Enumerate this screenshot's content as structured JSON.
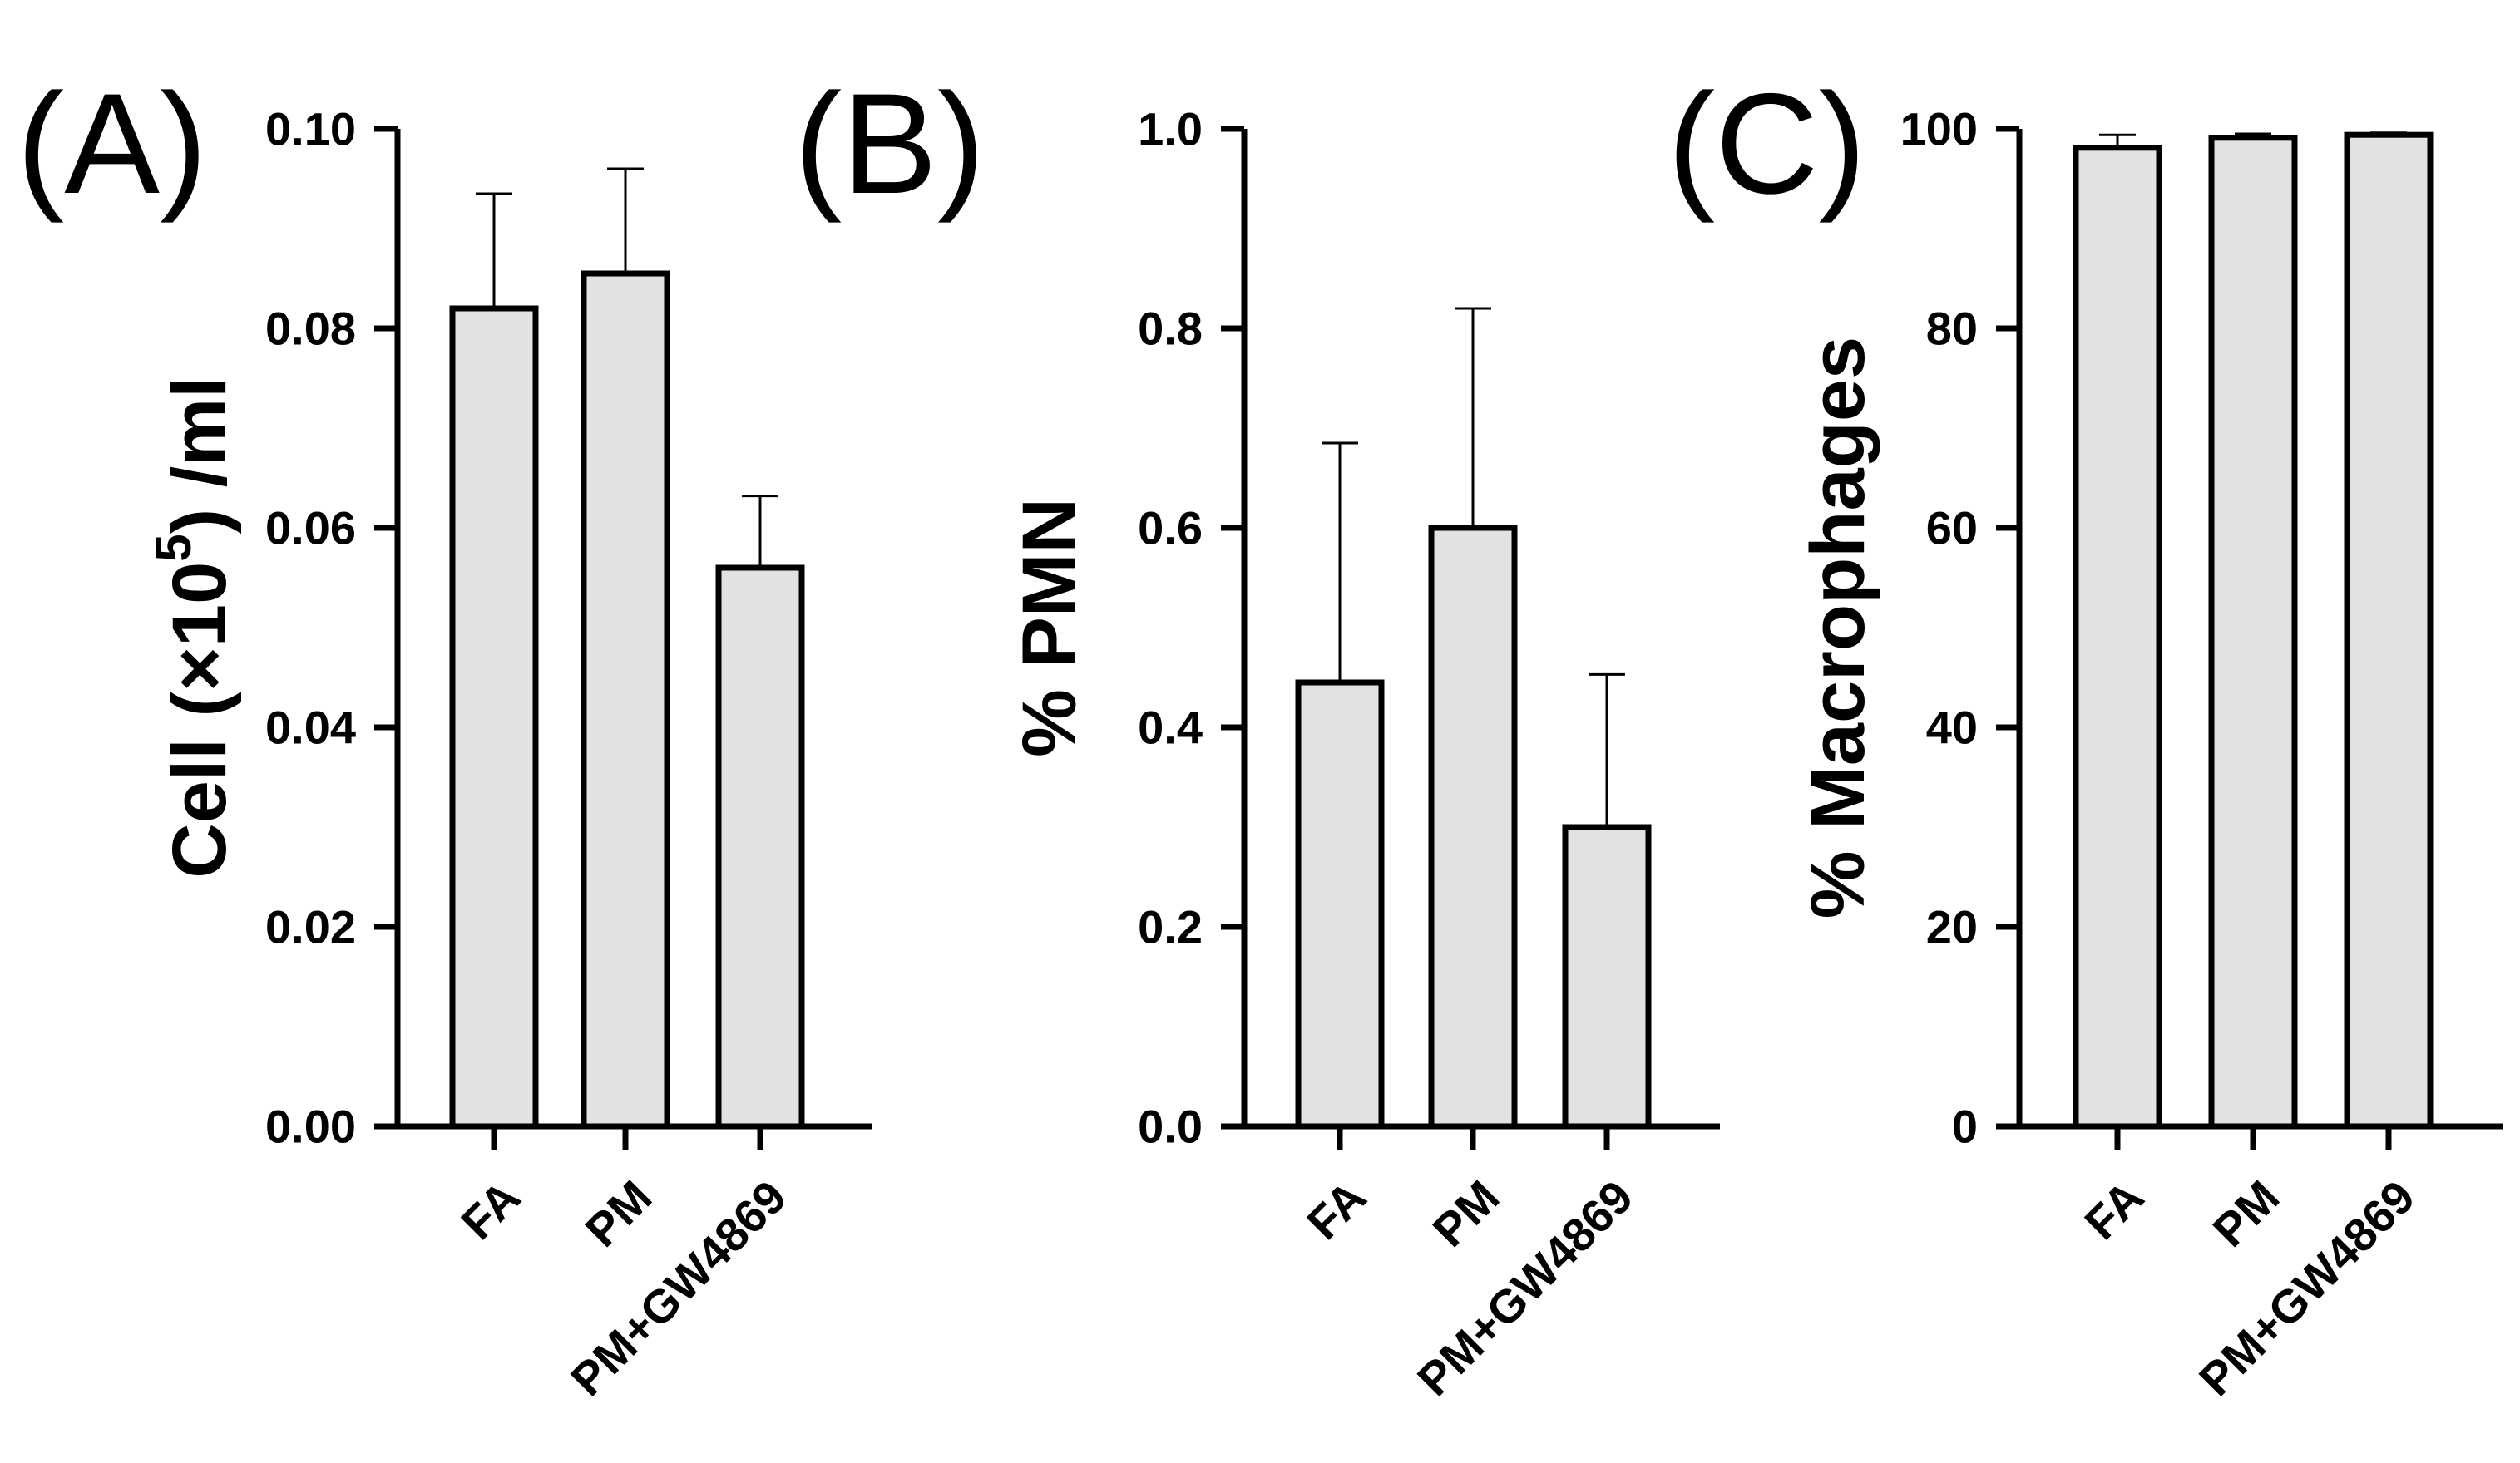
{
  "figure": {
    "background": "#ffffff",
    "bar_fill": "#e2e2e2",
    "stroke": "#000000"
  },
  "chart_data": [
    {
      "type": "bar",
      "panel": "(A)",
      "title": "",
      "ylabel": "Cell (×10⁵) /ml",
      "ylabel_parts": {
        "pre": "Cell (×10",
        "sup": "5",
        "post": ") /ml"
      },
      "xlabel": "",
      "categories": [
        "FA",
        "PM",
        "PM+GW4869"
      ],
      "values": [
        0.082,
        0.0855,
        0.056
      ],
      "errors": [
        0.0115,
        0.0105,
        0.0072
      ],
      "ylim": [
        0,
        0.1
      ],
      "yticks": [
        0,
        0.02,
        0.04,
        0.06,
        0.08,
        0.1
      ],
      "ytick_labels": [
        "0.00",
        "0.02",
        "0.04",
        "0.06",
        "0.08",
        "0.10"
      ]
    },
    {
      "type": "bar",
      "panel": "(B)",
      "title": "",
      "ylabel": "% PMN",
      "ylabel_parts": {
        "pre": "% PMN",
        "sup": "",
        "post": ""
      },
      "xlabel": "",
      "categories": [
        "FA",
        "PM",
        "PM+GW4869"
      ],
      "values": [
        0.445,
        0.6,
        0.3
      ],
      "errors": [
        0.24,
        0.22,
        0.153
      ],
      "ylim": [
        0,
        1
      ],
      "yticks": [
        0,
        0.2,
        0.4,
        0.6,
        0.8,
        1.0
      ],
      "ytick_labels": [
        "0.0",
        "0.2",
        "0.4",
        "0.6",
        "0.8",
        "1.0"
      ]
    },
    {
      "type": "bar",
      "panel": "(C)",
      "title": "",
      "ylabel": "% Macrophages",
      "ylabel_parts": {
        "pre": "% Macrophages",
        "sup": "",
        "post": ""
      },
      "xlabel": "",
      "categories": [
        "FA",
        "PM",
        "PM+GW4869"
      ],
      "values": [
        98.1,
        99.1,
        99.4
      ],
      "errors": [
        1.3,
        0.4,
        0.2
      ],
      "ylim": [
        0,
        100
      ],
      "yticks": [
        0,
        20,
        40,
        60,
        80,
        100
      ],
      "ytick_labels": [
        "0",
        "20",
        "40",
        "60",
        "80",
        "100"
      ]
    }
  ]
}
